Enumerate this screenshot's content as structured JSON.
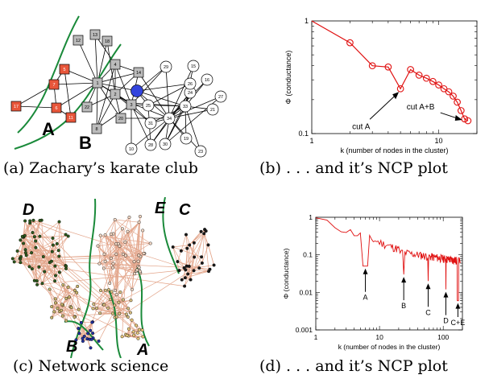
{
  "captions": {
    "a": "(a) Zachary’s karate club",
    "b": "(b) . . . and it’s NCP plot",
    "c": "(c) Network science",
    "d": "(d) . . . and it’s NCP plot"
  },
  "panel_a": {
    "labels": {
      "A": "A",
      "B": "B"
    },
    "nodes": {
      "n1": "1",
      "n2": "2",
      "n3": "3",
      "n4": "4",
      "n5": "5",
      "n6": "6",
      "n7": "7",
      "n8": "8",
      "n10": "10",
      "n11": "11",
      "n12": "12",
      "n13": "13",
      "n14": "14",
      "n15": "15",
      "n16": "16",
      "n17": "17",
      "n18": "18",
      "n19": "19",
      "n20": "20",
      "n21": "21",
      "n22": "22",
      "n23": "23",
      "n24": "24",
      "n25": "25",
      "n26": "26",
      "n27": "27",
      "n28": "28",
      "n29": "29",
      "n30": "30",
      "n31": "31",
      "n32": "32",
      "n33": "33",
      "n34": "34"
    }
  },
  "panel_c": {
    "labels": {
      "A": "A",
      "B": "B",
      "C": "C",
      "D": "D",
      "E": "E"
    }
  },
  "chart_data": [
    {
      "type": "line",
      "x": [
        1,
        2,
        3,
        4,
        5,
        6,
        7,
        8,
        9,
        10,
        11,
        12,
        13,
        14,
        15,
        16,
        17
      ],
      "y": [
        1.0,
        0.64,
        0.4,
        0.39,
        0.25,
        0.37,
        0.33,
        0.31,
        0.29,
        0.27,
        0.25,
        0.235,
        0.215,
        0.19,
        0.16,
        0.135,
        0.13
      ],
      "markers": true,
      "xscale": "log",
      "yscale": "log",
      "xlim": [
        1,
        20
      ],
      "ylim": [
        0.1,
        1
      ],
      "xticks": [
        "1",
        "10"
      ],
      "yticks": [
        "0.1",
        "1"
      ],
      "xlabel": "k (number of nodes in the cluster)",
      "ylabel": "Φ (conductance)",
      "annotations": [
        {
          "text": "cut A",
          "x": 5,
          "y": 0.25
        },
        {
          "text": "cut A+B",
          "x": 16,
          "y": 0.13
        }
      ]
    },
    {
      "type": "line",
      "xscale": "log",
      "yscale": "log",
      "xlim": [
        1,
        200
      ],
      "ylim": [
        0.001,
        1
      ],
      "xticks": [
        "1",
        "10",
        "100"
      ],
      "yticks": [
        "0.001",
        "0.01",
        "0.1",
        "1"
      ],
      "xlabel": "k (number of nodes in the cluster)",
      "ylabel": "Φ (conductance)",
      "annotations": [
        {
          "text": "A",
          "x": 6,
          "y": 0.05
        },
        {
          "text": "B",
          "x": 24,
          "y": 0.03
        },
        {
          "text": "C",
          "x": 58,
          "y": 0.02
        },
        {
          "text": "D",
          "x": 110,
          "y": 0.012
        },
        {
          "text": "C+E",
          "x": 170,
          "y": 0.006
        }
      ]
    }
  ]
}
